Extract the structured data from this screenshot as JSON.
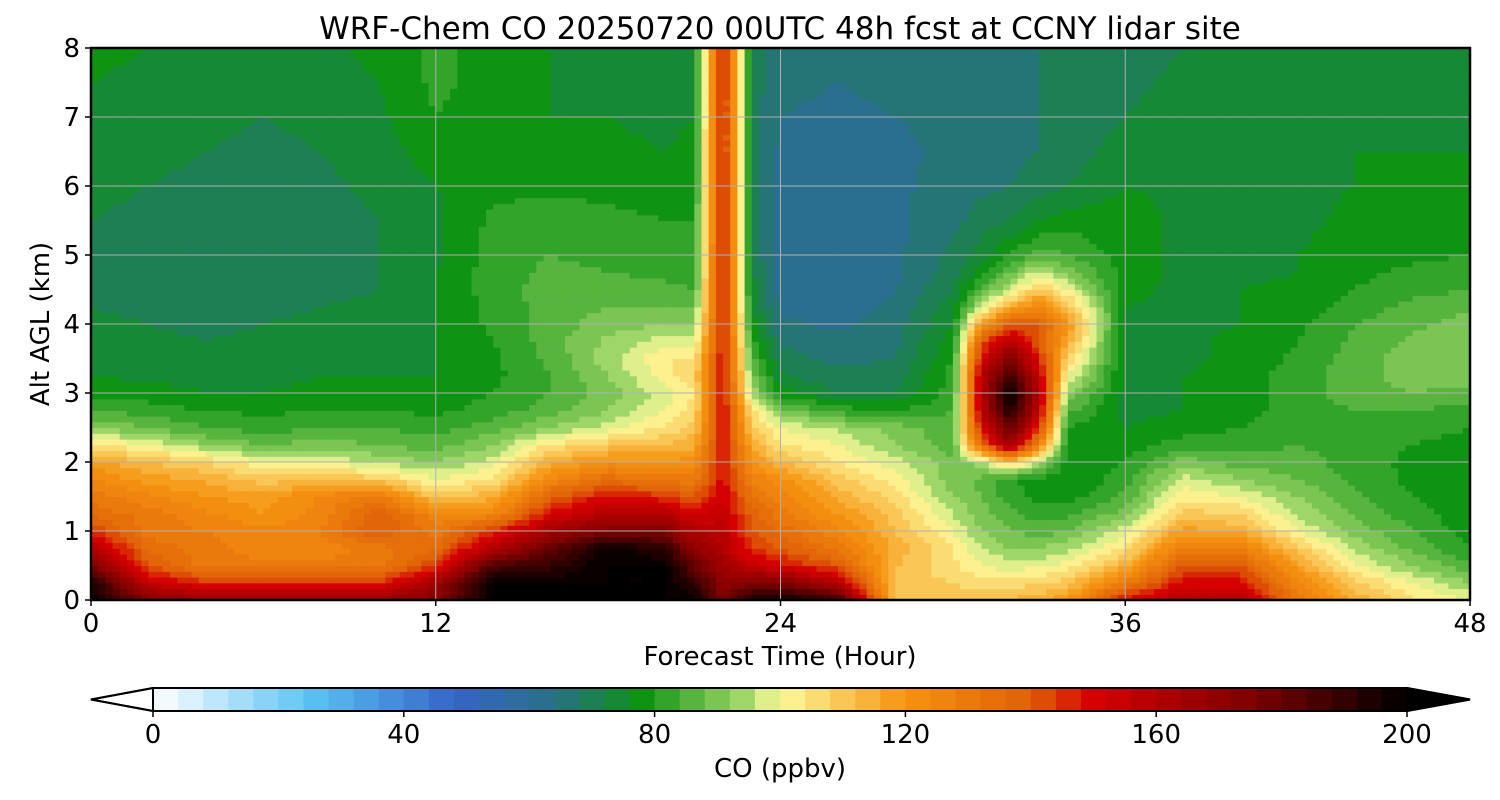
{
  "chart_data": {
    "type": "heatmap",
    "subtype": "filled-contour time-height cross section",
    "title": "WRF-Chem CO  20250720 00UTC 48h fcst at CCNY lidar site",
    "xlabel": "Forecast Time (Hour)",
    "ylabel": "Alt AGL (km)",
    "xlim": [
      0,
      48
    ],
    "ylim": [
      0,
      8
    ],
    "x_ticks": [
      "0",
      "12",
      "24",
      "36",
      "48"
    ],
    "y_ticks": [
      "0",
      "1",
      "2",
      "3",
      "4",
      "5",
      "6",
      "7",
      "8"
    ],
    "grid": true,
    "x": [
      0,
      2,
      4,
      6,
      8,
      10,
      12,
      14,
      16,
      18,
      20,
      21,
      22,
      23,
      24,
      26,
      28,
      30,
      31,
      32,
      33,
      34,
      36,
      38,
      40,
      42,
      44,
      46,
      48
    ],
    "y": [
      0,
      0.25,
      0.5,
      0.75,
      1,
      1.25,
      1.5,
      1.75,
      2,
      2.25,
      2.5,
      2.75,
      3,
      3.25,
      3.5,
      3.75,
      4,
      4.25,
      4.5,
      4.75,
      5,
      5.5,
      6,
      6.5,
      7,
      7.5,
      8
    ],
    "z": [
      [
        200,
        175,
        170,
        170,
        170,
        170,
        175,
        200,
        200,
        200,
        200,
        200,
        175,
        195,
        200,
        190,
        110,
        110,
        110,
        112,
        115,
        120,
        150,
        160,
        160,
        130,
        115,
        105,
        100
      ],
      [
        195,
        155,
        145,
        145,
        145,
        145,
        165,
        200,
        200,
        200,
        200,
        190,
        170,
        175,
        175,
        160,
        110,
        108,
        106,
        106,
        108,
        110,
        130,
        150,
        150,
        125,
        110,
        100,
        92
      ],
      [
        175,
        140,
        130,
        130,
        130,
        130,
        145,
        185,
        190,
        200,
        200,
        180,
        165,
        155,
        150,
        140,
        112,
        105,
        100,
        98,
        99,
        102,
        115,
        140,
        140,
        118,
        100,
        92,
        85
      ],
      [
        160,
        135,
        130,
        125,
        125,
        130,
        135,
        160,
        180,
        200,
        190,
        170,
        160,
        145,
        140,
        130,
        115,
        104,
        96,
        92,
        92,
        95,
        105,
        130,
        128,
        110,
        95,
        87,
        80
      ],
      [
        145,
        130,
        128,
        125,
        128,
        140,
        130,
        145,
        165,
        175,
        175,
        160,
        158,
        140,
        135,
        125,
        112,
        100,
        92,
        88,
        86,
        88,
        98,
        118,
        115,
        100,
        90,
        84,
        78
      ],
      [
        135,
        130,
        125,
        120,
        125,
        140,
        125,
        125,
        150,
        160,
        160,
        150,
        155,
        138,
        130,
        120,
        110,
        96,
        90,
        85,
        82,
        83,
        90,
        110,
        108,
        95,
        87,
        82,
        77
      ],
      [
        130,
        125,
        120,
        118,
        125,
        130,
        110,
        115,
        138,
        150,
        145,
        140,
        152,
        132,
        126,
        115,
        106,
        92,
        88,
        82,
        79,
        78,
        85,
        103,
        100,
        92,
        85,
        80,
        76
      ],
      [
        125,
        118,
        115,
        110,
        112,
        110,
        100,
        105,
        125,
        135,
        130,
        130,
        150,
        128,
        122,
        110,
        102,
        90,
        87,
        80,
        78,
        76,
        82,
        98,
        92,
        88,
        83,
        79,
        76
      ],
      [
        118,
        112,
        108,
        100,
        100,
        95,
        92,
        98,
        115,
        122,
        120,
        122,
        150,
        120,
        112,
        104,
        98,
        89,
        95,
        110,
        95,
        78,
        80,
        90,
        86,
        86,
        82,
        79,
        76
      ],
      [
        105,
        100,
        92,
        88,
        90,
        88,
        86,
        92,
        105,
        110,
        112,
        115,
        150,
        115,
        105,
        100,
        92,
        86,
        135,
        165,
        125,
        78,
        78,
        82,
        82,
        84,
        82,
        80,
        78
      ],
      [
        92,
        88,
        84,
        82,
        84,
        84,
        82,
        86,
        92,
        98,
        105,
        110,
        150,
        110,
        100,
        95,
        90,
        85,
        150,
        180,
        145,
        80,
        76,
        78,
        80,
        83,
        83,
        82,
        80
      ],
      [
        84,
        82,
        80,
        79,
        80,
        80,
        79,
        82,
        86,
        92,
        100,
        106,
        150,
        105,
        90,
        82,
        80,
        84,
        158,
        195,
        155,
        85,
        75,
        76,
        78,
        82,
        84,
        84,
        82
      ],
      [
        79,
        78,
        76,
        76,
        77,
        77,
        77,
        80,
        84,
        90,
        98,
        104,
        150,
        95,
        78,
        72,
        72,
        82,
        160,
        200,
        160,
        92,
        75,
        76,
        78,
        82,
        86,
        88,
        86
      ],
      [
        76,
        75,
        74,
        75,
        76,
        76,
        76,
        79,
        84,
        92,
        102,
        108,
        150,
        90,
        73,
        69,
        70,
        82,
        158,
        190,
        155,
        100,
        75,
        76,
        78,
        82,
        86,
        90,
        90
      ],
      [
        75,
        74,
        73,
        74,
        75,
        75,
        76,
        79,
        85,
        94,
        104,
        105,
        150,
        86,
        70,
        67,
        68,
        80,
        150,
        175,
        148,
        108,
        74,
        75,
        77,
        81,
        86,
        90,
        92
      ],
      [
        74,
        73,
        72,
        73,
        74,
        74,
        76,
        80,
        86,
        93,
        98,
        98,
        150,
        82,
        67,
        65,
        67,
        78,
        140,
        160,
        140,
        115,
        74,
        75,
        77,
        80,
        85,
        89,
        92
      ],
      [
        73,
        72,
        71,
        72,
        73,
        74,
        76,
        81,
        86,
        90,
        92,
        92,
        150,
        78,
        65,
        63,
        66,
        76,
        120,
        140,
        140,
        120,
        75,
        75,
        76,
        79,
        84,
        87,
        90
      ],
      [
        72,
        71,
        70,
        71,
        72,
        73,
        76,
        81,
        86,
        88,
        88,
        88,
        150,
        76,
        63,
        62,
        65,
        74,
        98,
        115,
        125,
        112,
        76,
        75,
        76,
        78,
        82,
        85,
        87
      ],
      [
        71,
        70,
        69,
        70,
        71,
        72,
        76,
        82,
        86,
        86,
        85,
        84,
        150,
        74,
        62,
        61,
        64,
        72,
        85,
        98,
        110,
        100,
        77,
        75,
        76,
        77,
        80,
        83,
        84
      ],
      [
        71,
        70,
        69,
        70,
        71,
        72,
        76,
        82,
        85,
        84,
        83,
        82,
        150,
        73,
        61,
        61,
        63,
        70,
        78,
        88,
        98,
        90,
        78,
        75,
        75,
        76,
        79,
        81,
        82
      ],
      [
        71,
        70,
        69,
        69,
        70,
        72,
        75,
        82,
        84,
        83,
        82,
        81,
        150,
        72,
        61,
        61,
        63,
        69,
        74,
        80,
        86,
        84,
        78,
        75,
        75,
        76,
        78,
        79,
        80
      ],
      [
        72,
        71,
        70,
        69,
        70,
        72,
        75,
        81,
        82,
        81,
        80,
        80,
        150,
        71,
        61,
        61,
        63,
        67,
        70,
        72,
        76,
        78,
        78,
        75,
        75,
        75,
        77,
        78,
        78
      ],
      [
        73,
        72,
        71,
        70,
        71,
        73,
        76,
        79,
        79,
        79,
        78,
        78,
        150,
        71,
        62,
        62,
        63,
        66,
        67,
        68,
        70,
        72,
        76,
        75,
        75,
        75,
        76,
        77,
        77
      ],
      [
        74,
        73,
        72,
        71,
        72,
        74,
        78,
        78,
        77,
        77,
        76,
        77,
        150,
        70,
        63,
        62,
        63,
        65,
        66,
        67,
        68,
        70,
        74,
        75,
        75,
        75,
        76,
        76,
        76
      ],
      [
        75,
        74,
        73,
        72,
        73,
        75,
        80,
        78,
        76,
        76,
        75,
        76,
        150,
        70,
        64,
        63,
        64,
        65,
        66,
        67,
        68,
        69,
        72,
        74,
        75,
        75,
        75,
        75,
        75
      ],
      [
        76,
        75,
        74,
        73,
        74,
        76,
        81,
        78,
        76,
        75,
        75,
        76,
        150,
        70,
        65,
        64,
        65,
        66,
        66,
        67,
        68,
        69,
        71,
        73,
        74,
        75,
        75,
        75,
        75
      ],
      [
        77,
        76,
        75,
        74,
        75,
        77,
        81,
        78,
        76,
        75,
        75,
        76,
        150,
        71,
        66,
        65,
        66,
        67,
        67,
        68,
        68,
        69,
        70,
        72,
        73,
        74,
        75,
        75,
        75
      ]
    ],
    "colorbar": {
      "label": "CO  (ppbv)",
      "min": 0,
      "max": 200,
      "ticks": [
        "0",
        "40",
        "80",
        "120",
        "160",
        "200"
      ],
      "extend": "both",
      "colormap_stops": [
        {
          "v": 0,
          "c": "#ffffff"
        },
        {
          "v": 25,
          "c": "#5bc3f3"
        },
        {
          "v": 48,
          "c": "#3565c8"
        },
        {
          "v": 64,
          "c": "#2a7087"
        },
        {
          "v": 78,
          "c": "#0e9313"
        },
        {
          "v": 94,
          "c": "#9fd66a"
        },
        {
          "v": 100,
          "c": "#fefb9d"
        },
        {
          "v": 120,
          "c": "#f59310"
        },
        {
          "v": 140,
          "c": "#e06008"
        },
        {
          "v": 150,
          "c": "#d50000"
        },
        {
          "v": 175,
          "c": "#7d0000"
        },
        {
          "v": 200,
          "c": "#000000"
        }
      ]
    }
  }
}
